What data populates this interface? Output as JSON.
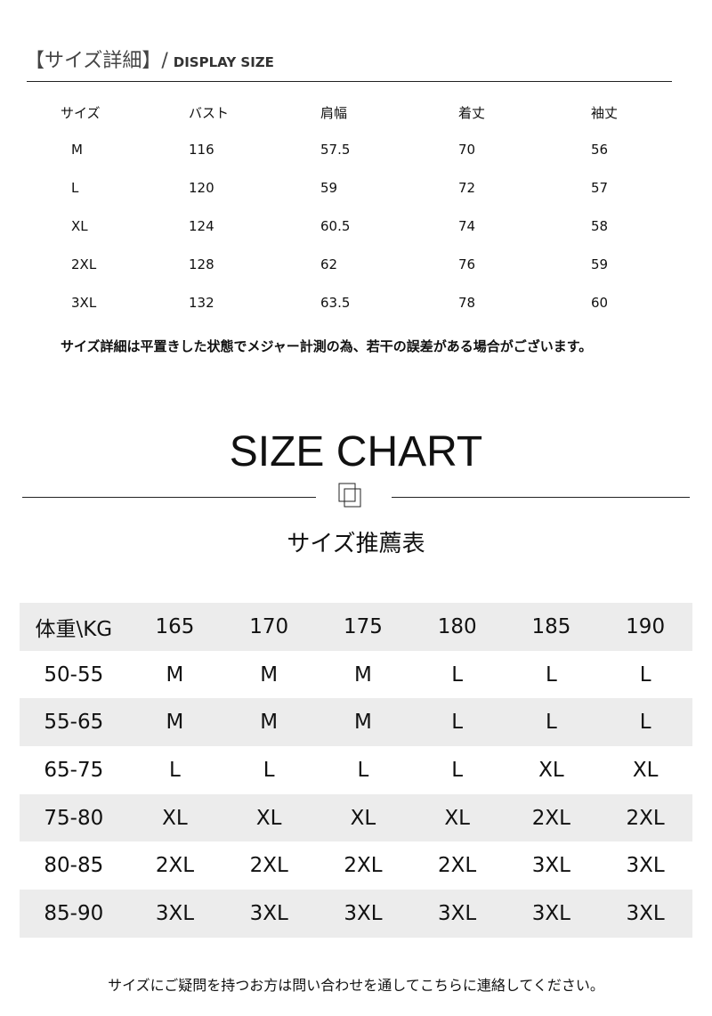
{
  "section": {
    "title": "【サイズ詳細】/",
    "subtitle": "DISPLAY SIZE"
  },
  "detail_table": {
    "headers": [
      "サイズ",
      "バスト",
      "肩幅",
      "着丈",
      "袖丈"
    ],
    "rows": [
      [
        "M",
        "116",
        "57.5",
        "70",
        "56"
      ],
      [
        "L",
        "120",
        "59",
        "72",
        "57"
      ],
      [
        "XL",
        "124",
        "60.5",
        "74",
        "58"
      ],
      [
        "2XL",
        "128",
        "62",
        "76",
        "59"
      ],
      [
        "3XL",
        "132",
        "63.5",
        "78",
        "60"
      ]
    ]
  },
  "detail_note": "サイズ詳細は平置きした状態でメジャー計測の為、若干の誤差がある場合がございます。",
  "chart_title": "SIZE CHART",
  "chart_subtitle": "サイズ推薦表",
  "recommend_table": {
    "headers": [
      "体重\\KG",
      "165",
      "170",
      "175",
      "180",
      "185",
      "190"
    ],
    "rows": [
      [
        "50-55",
        "M",
        "M",
        "M",
        "L",
        "L",
        "L"
      ],
      [
        "55-65",
        "M",
        "M",
        "M",
        "L",
        "L",
        "L"
      ],
      [
        "65-75",
        "L",
        "L",
        "L",
        "L",
        "XL",
        "XL"
      ],
      [
        "75-80",
        "XL",
        "XL",
        "XL",
        "XL",
        "2XL",
        "2XL"
      ],
      [
        "80-85",
        "2XL",
        "2XL",
        "2XL",
        "2XL",
        "3XL",
        "3XL"
      ],
      [
        "85-90",
        "3XL",
        "3XL",
        "3XL",
        "3XL",
        "3XL",
        "3XL"
      ]
    ],
    "stripe_color": "#ececec"
  },
  "footer_note": "サイズにご疑問を持つお方は問い合わせを通してこちらに連絡してください。"
}
